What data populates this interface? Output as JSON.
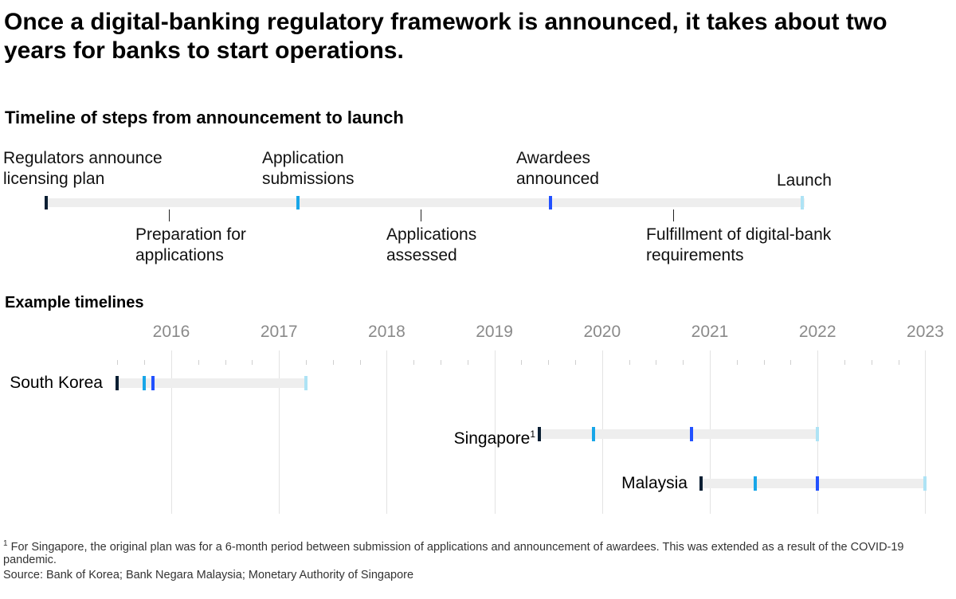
{
  "title": "Once a digital-banking regulatory framework is announced, it takes about two years for banks to start operations.",
  "timeline": {
    "heading": "Timeline of steps from announcement to launch",
    "above": [
      {
        "l1": "Regulators announce",
        "l2": "licensing plan"
      },
      {
        "l1": "Application",
        "l2": "submissions"
      },
      {
        "l1": "Awardees",
        "l2": "announced"
      },
      {
        "l1": "Launch",
        "l2": ""
      }
    ],
    "below": [
      {
        "l1": "Preparation for",
        "l2": "applications"
      },
      {
        "l1": "Applications",
        "l2": "assessed"
      },
      {
        "l1": "Fulfillment of digital-bank",
        "l2": "requirements"
      }
    ]
  },
  "examples": {
    "heading": "Example timelines",
    "singapore_footnote_mark": "1"
  },
  "colors": {
    "announce": "#0b1f33",
    "submission": "#18a6e8",
    "awardees": "#2251ff",
    "launch": "#aee3f5",
    "bar": "#eeeeee"
  },
  "chart_data": {
    "type": "timeline",
    "x_ticks": [
      "2016",
      "2017",
      "2018",
      "2019",
      "2020",
      "2021",
      "2022",
      "2023"
    ],
    "xlim": [
      2015.5,
      2023.2
    ],
    "milestones": [
      "announce",
      "submission",
      "awardees",
      "launch"
    ],
    "series": [
      {
        "name": "South Korea",
        "values": [
          2015.5,
          2015.75,
          2015.83,
          2017.25
        ]
      },
      {
        "name": "Singapore",
        "values": [
          2019.42,
          2019.92,
          2020.83,
          2022.0
        ]
      },
      {
        "name": "Malaysia",
        "values": [
          2020.92,
          2021.42,
          2022.0,
          2023.0
        ]
      }
    ]
  },
  "footnote": "For Singapore, the original plan was for a 6-month period between submission of applications and announcement of awardees. This was extended as a result of the COVID-19 pandemic.",
  "footnote_mark": "1",
  "source": "Source: Bank of Korea; Bank Negara Malaysia; Monetary Authority of Singapore"
}
